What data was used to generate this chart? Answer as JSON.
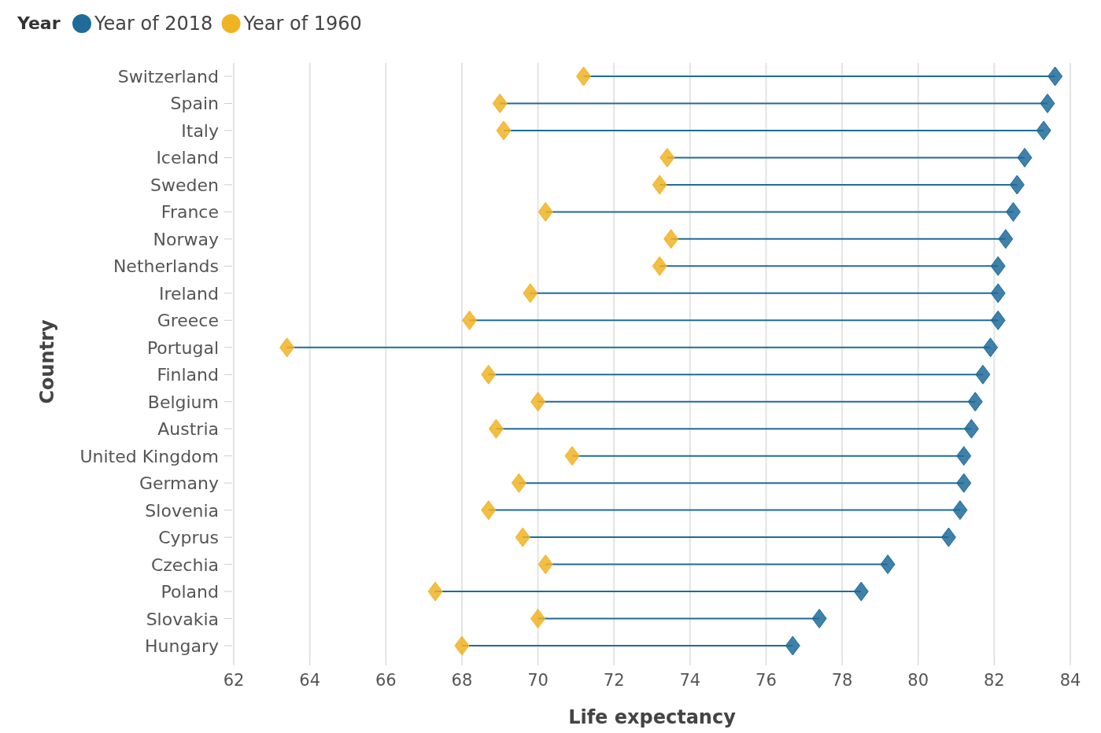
{
  "chart_data": {
    "type": "scatter",
    "orientation": "horizontal",
    "legend_title": "Year",
    "legend": "top left",
    "xlabel": "Life expectancy",
    "ylabel": "Country",
    "marker": "diamond",
    "grid": "x",
    "categories": [
      "Switzerland",
      "Spain",
      "Italy",
      "Iceland",
      "Sweden",
      "France",
      "Norway",
      "Netherlands",
      "Ireland",
      "Greece",
      "Portugal",
      "Finland",
      "Belgium",
      "Austria",
      "United Kingdom",
      "Germany",
      "Slovenia",
      "Cyprus",
      "Czechia",
      "Poland",
      "Slovakia",
      "Hungary"
    ],
    "xlim": [
      62,
      84
    ],
    "xticks": [
      62,
      64,
      66,
      68,
      70,
      72,
      74,
      76,
      78,
      80,
      82,
      84
    ],
    "series": [
      {
        "name": "Year of 2018",
        "color": "#1f6b9a",
        "values": [
          83.6,
          83.4,
          83.3,
          82.8,
          82.6,
          82.5,
          82.3,
          82.1,
          82.1,
          82.1,
          81.9,
          81.7,
          81.5,
          81.4,
          81.2,
          81.2,
          81.1,
          80.8,
          79.2,
          78.5,
          77.4,
          76.7
        ]
      },
      {
        "name": "Year of 1960",
        "color": "#f0b323",
        "values": [
          71.2,
          69.0,
          69.1,
          73.4,
          73.2,
          70.2,
          73.5,
          73.2,
          69.8,
          68.2,
          63.4,
          68.7,
          70.0,
          68.9,
          70.9,
          69.5,
          68.7,
          69.6,
          70.2,
          67.3,
          70.0,
          68.0
        ]
      }
    ]
  }
}
